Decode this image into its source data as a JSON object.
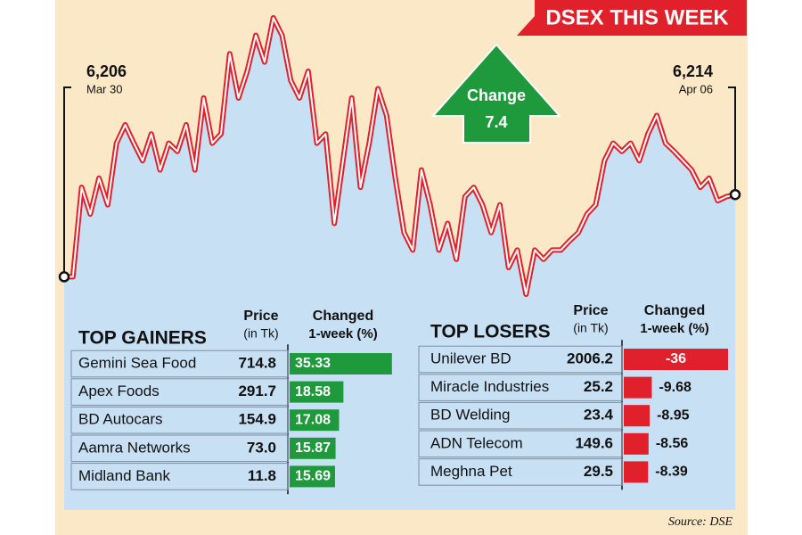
{
  "title": "DSEX THIS WEEK",
  "source": "Source: DSE",
  "chart_data": {
    "type": "line",
    "color": "#e0202a",
    "fill": "#c8e0f4",
    "values": [
      6206.0,
      6206.0,
      6214.7,
      6212.1,
      6215.6,
      6213.0,
      6219.0,
      6220.8,
      6219.0,
      6217.3,
      6219.9,
      6216.4,
      6219.0,
      6218.2,
      6220.8,
      6216.4,
      6223.4,
      6219.0,
      6219.9,
      6227.7,
      6223.4,
      6226.0,
      6229.5,
      6226.9,
      6231.2,
      6229.5,
      6225.1,
      6223.4,
      6226.0,
      6219.0,
      6219.9,
      6211.2,
      6217.3,
      6223.4,
      6214.7,
      6219.0,
      6224.3,
      6221.7,
      6215.6,
      6210.3,
      6208.6,
      6216.4,
      6213.0,
      6208.6,
      6211.2,
      6207.7,
      6213.8,
      6214.7,
      6213.0,
      6210.3,
      6213.0,
      6206.9,
      6208.6,
      6204.3,
      6208.6,
      6207.7,
      6208.6,
      6208.6,
      6209.5,
      6210.3,
      6212.1,
      6213.0,
      6217.3,
      6219.0,
      6218.2,
      6219.0,
      6217.3,
      6219.9,
      6221.7,
      6219.0,
      6218.2,
      6217.3,
      6216.4,
      6214.7,
      6215.6,
      6213.4,
      6213.8,
      6214.0
    ],
    "start_label": {
      "value": 6206,
      "label": "6,206",
      "date": "Mar 30"
    },
    "end_label": {
      "value": 6214,
      "label": "6,214",
      "date": "Apr 06"
    },
    "change": {
      "label": "Change",
      "value": 7.4,
      "color": "#1e9a3c"
    }
  },
  "gainers": {
    "title": "TOP GAINERS",
    "price_header": [
      "Price",
      "(in Tk)"
    ],
    "change_header": [
      "Changed",
      "1-week (%)"
    ],
    "bar_color": "#1e9a3c",
    "rows": [
      {
        "name": "Gemini Sea Food",
        "price": "714.8",
        "change": 35.33
      },
      {
        "name": "Apex Foods",
        "price": "291.7",
        "change": 18.58
      },
      {
        "name": "BD Autocars",
        "price": "154.9",
        "change": 17.08
      },
      {
        "name": "Aamra Networks",
        "price": "73.0",
        "change": 15.87
      },
      {
        "name": "Midland Bank",
        "price": "11.8",
        "change": 15.69
      }
    ]
  },
  "losers": {
    "title": "TOP LOSERS",
    "price_header": [
      "Price",
      "(in Tk)"
    ],
    "change_header": [
      "Changed",
      "1-week (%)"
    ],
    "bar_color": "#e0202a",
    "rows": [
      {
        "name": "Unilever BD",
        "price": "2006.2",
        "change": -36
      },
      {
        "name": "Miracle Industries",
        "price": "25.2",
        "change": -9.68
      },
      {
        "name": "BD Welding",
        "price": "23.4",
        "change": -8.95
      },
      {
        "name": "ADN Telecom",
        "price": "149.6",
        "change": -8.56
      },
      {
        "name": "Meghna Pet",
        "price": "29.5",
        "change": -8.39
      }
    ]
  }
}
